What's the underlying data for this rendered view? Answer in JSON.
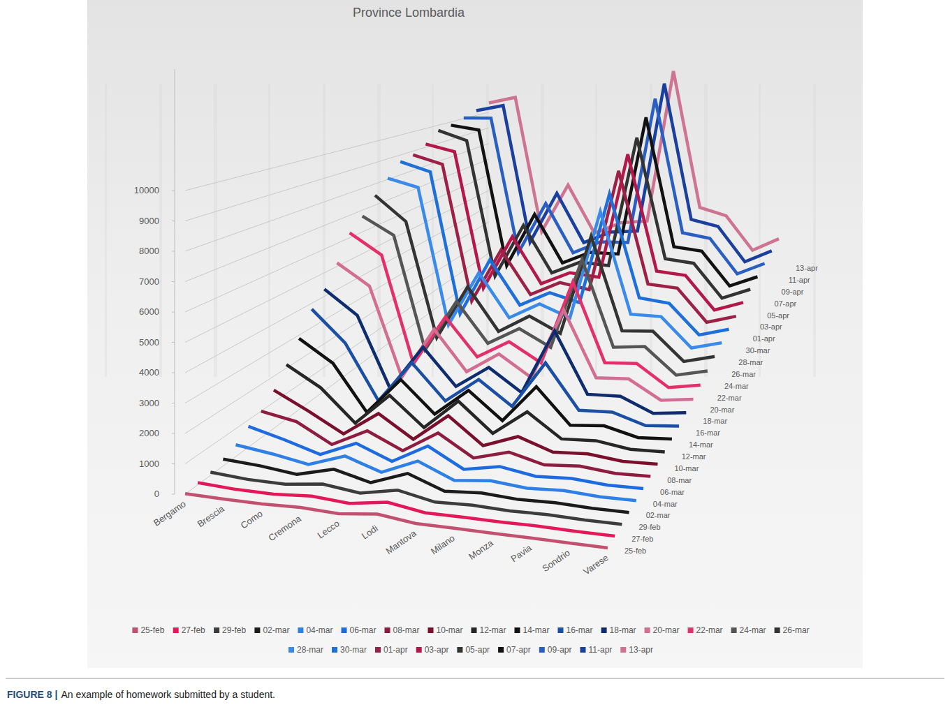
{
  "chart_data": {
    "type": "line",
    "title": "Province Lombardia",
    "categories": [
      "Bergamo",
      "Brescia",
      "Como",
      "Cremona",
      "Lecco",
      "Lodi",
      "Mantova",
      "Milano",
      "Monza",
      "Pavia",
      "Sondrio",
      "Varese"
    ],
    "ylim": [
      0,
      14000
    ],
    "yticks": [
      0,
      1000,
      2000,
      3000,
      4000,
      5000,
      6000,
      7000,
      8000,
      9000,
      10000
    ],
    "grid": true,
    "legend": "bottom",
    "series": [
      {
        "name": "25-feb",
        "color": "#c2506f",
        "values": [
          18,
          0,
          0,
          45,
          1,
          150,
          0,
          6,
          1,
          7,
          0,
          1
        ]
      },
      {
        "name": "27-feb",
        "color": "#e3185b",
        "values": [
          72,
          3,
          0,
          90,
          2,
          200,
          0,
          10,
          2,
          20,
          0,
          1
        ]
      },
      {
        "name": "29-feb",
        "color": "#3c3c3c",
        "values": [
          110,
          14,
          2,
          160,
          3,
          258,
          2,
          46,
          5,
          28,
          0,
          2
        ]
      },
      {
        "name": "02-mar",
        "color": "#1b1b1b",
        "values": [
          243,
          154,
          3,
          332,
          10,
          482,
          5,
          93,
          13,
          48,
          1,
          5
        ]
      },
      {
        "name": "04-mar",
        "color": "#2f80e6",
        "values": [
          423,
          243,
          7,
          452,
          15,
          559,
          14,
          145,
          20,
          79,
          1,
          6
        ]
      },
      {
        "name": "06-mar",
        "color": "#1e6be0",
        "values": [
          761,
          413,
          11,
          562,
          35,
          739,
          24,
          267,
          48,
          109,
          5,
          14
        ]
      },
      {
        "name": "08-mar",
        "color": "#8e1c3e",
        "values": [
          997,
          739,
          20,
          665,
          51,
          853,
          52,
          406,
          62,
          150,
          9,
          29
        ]
      },
      {
        "name": "10-mar",
        "color": "#7a0f2c",
        "values": [
          1472,
          790,
          50,
          957,
          99,
          1133,
          113,
          592,
          125,
          185,
          27,
          48
        ]
      },
      {
        "name": "12-mar",
        "color": "#262626",
        "values": [
          2136,
          1351,
          84,
          1302,
          158,
          1320,
          178,
          1146,
          207,
          262,
          48,
          72
        ]
      },
      {
        "name": "14-mar",
        "color": "#111111",
        "values": [
          2864,
          1985,
          126,
          1565,
          292,
          1362,
          265,
          1750,
          318,
          413,
          56,
          118
        ]
      },
      {
        "name": "16-mar",
        "color": "#1b4fa3",
        "values": [
          3760,
          2473,
          199,
          1881,
          419,
          1418,
          421,
          2326,
          483,
          517,
          73,
          162
        ]
      },
      {
        "name": "18-mar",
        "color": "#0f2d6e",
        "values": [
          4305,
          3300,
          309,
          2167,
          608,
          1520,
          561,
          3278,
          702,
          720,
          102,
          242
        ]
      },
      {
        "name": "20-mar",
        "color": "#d26e91",
        "values": [
          5154,
          4247,
          387,
          2560,
          823,
          1693,
          764,
          3804,
          955,
          1006,
          177,
          317
        ]
      },
      {
        "name": "22-mar",
        "color": "#e3306b",
        "values": [
          6216,
          5317,
          561,
          2733,
          1048,
          1820,
          966,
          4672,
          1155,
          1217,
          232,
          432
        ]
      },
      {
        "name": "24-mar",
        "color": "#555555",
        "values": [
          6728,
          5928,
          762,
          3061,
          1226,
          1987,
          1213,
          5326,
          1386,
          1501,
          280,
          553
        ]
      },
      {
        "name": "26-mar",
        "color": "#333333",
        "values": [
          7458,
          6298,
          887,
          3370,
          1338,
          2142,
          1405,
          6074,
          1678,
          1734,
          385,
          694
        ]
      },
      {
        "name": "28-mar",
        "color": "#3a8be9",
        "values": [
          8060,
          7678,
          1062,
          3668,
          1549,
          2286,
          1681,
          6922,
          1994,
          1946,
          492,
          813
        ]
      },
      {
        "name": "30-mar",
        "color": "#1f6fd9",
        "values": [
          8664,
          8213,
          1158,
          3925,
          1715,
          2396,
          1955,
          7469,
          2315,
          2102,
          578,
          920
        ]
      },
      {
        "name": "01-apr",
        "color": "#9c2147",
        "values": [
          8803,
          8367,
          1345,
          4042,
          1786,
          2453,
          2138,
          8329,
          2533,
          2369,
          652,
          1018
        ]
      },
      {
        "name": "03-apr",
        "color": "#b2194a",
        "values": [
          9171,
          8801,
          1560,
          4337,
          1875,
          2502,
          2301,
          8911,
          2711,
          2525,
          708,
          1154
        ]
      },
      {
        "name": "05-apr",
        "color": "#333333",
        "values": [
          9712,
          9180,
          1731,
          4556,
          1969,
          2589,
          2429,
          9522,
          2865,
          2651,
          756,
          1273
        ]
      },
      {
        "name": "07-apr",
        "color": "#121212",
        "values": [
          9815,
          9564,
          1831,
          4777,
          2018,
          2645,
          2563,
          10391,
          3024,
          2787,
          817,
          1361
        ]
      },
      {
        "name": "09-apr",
        "color": "#2a5fc2",
        "values": [
          10043,
          10044,
          2088,
          4996,
          2085,
          2741,
          2706,
          11230,
          3299,
          2975,
          879,
          1498
        ]
      },
      {
        "name": "11-apr",
        "color": "#1a3f9c",
        "values": [
          10294,
          10602,
          2200,
          5195,
          2158,
          2798,
          2856,
          11914,
          3555,
          3123,
          939,
          1606
        ]
      },
      {
        "name": "13-apr",
        "color": "#cf7393",
        "values": [
          10590,
          10924,
          2339,
          5287,
          2198,
          2833,
          2926,
          12479,
          3752,
          3195,
          981,
          1688
        ]
      }
    ]
  },
  "figure_caption": {
    "label": "FIGURE 8 |",
    "text": "An example of homework submitted by a student."
  }
}
